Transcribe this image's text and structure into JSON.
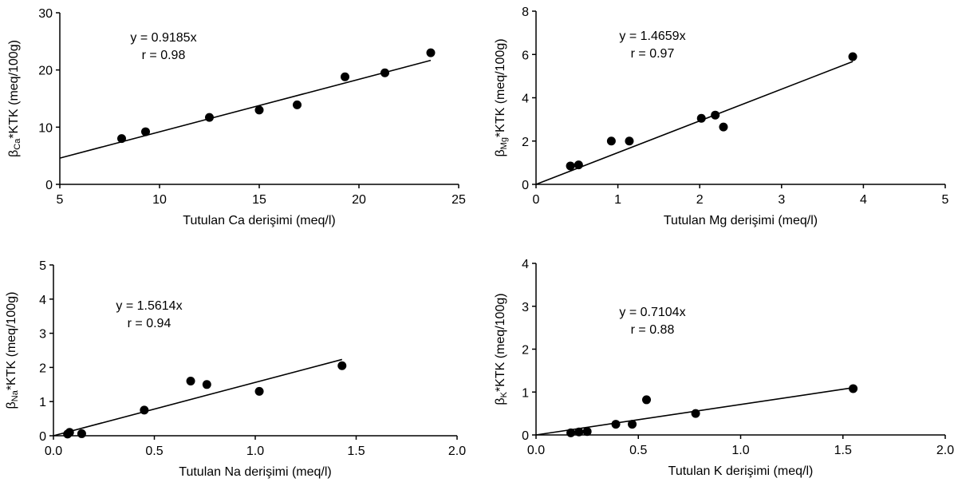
{
  "chart_data": [
    {
      "type": "scatter",
      "xlabel": "Tutulan Ca derişimi (meq/l)",
      "ylabel_prefix": "β",
      "ylabel_sub": "Ca",
      "ylabel_suffix": "*KTK (meq/100g)",
      "xlim": [
        5,
        25
      ],
      "ylim": [
        0,
        30
      ],
      "xticks": [
        5,
        10,
        15,
        20,
        25
      ],
      "xtick_labels": [
        "5",
        "10",
        "15",
        "20",
        "25"
      ],
      "yticks": [
        0,
        10,
        20,
        30
      ],
      "ytick_labels": [
        "0",
        "10",
        "20",
        "30"
      ],
      "points": [
        {
          "x": 8.1,
          "y": 8.0
        },
        {
          "x": 9.3,
          "y": 9.2
        },
        {
          "x": 12.5,
          "y": 11.7
        },
        {
          "x": 15.0,
          "y": 13.0
        },
        {
          "x": 16.9,
          "y": 13.9
        },
        {
          "x": 19.3,
          "y": 18.8
        },
        {
          "x": 21.3,
          "y": 19.5
        },
        {
          "x": 23.6,
          "y": 23.0
        }
      ],
      "trendline": {
        "slope": 0.9185,
        "x_start": 5,
        "x_end": 23.6
      },
      "annotation": [
        "y = 0.9185x",
        "r = 0.98"
      ],
      "grid": false,
      "legend": "none"
    },
    {
      "type": "scatter",
      "xlabel": "Tutulan Mg derişimi (meq/l)",
      "ylabel_prefix": "β",
      "ylabel_sub": "Mg",
      "ylabel_suffix": "*KTK (meq/100g)",
      "xlim": [
        0,
        5
      ],
      "ylim": [
        0,
        8
      ],
      "xticks": [
        0,
        1,
        2,
        3,
        4,
        5
      ],
      "xtick_labels": [
        "0",
        "1",
        "2",
        "3",
        "4",
        "5"
      ],
      "yticks": [
        0,
        2,
        4,
        6,
        8
      ],
      "ytick_labels": [
        "0",
        "2",
        "4",
        "6",
        "8"
      ],
      "points": [
        {
          "x": 0.42,
          "y": 0.85
        },
        {
          "x": 0.52,
          "y": 0.9
        },
        {
          "x": 0.92,
          "y": 2.0
        },
        {
          "x": 1.14,
          "y": 2.0
        },
        {
          "x": 2.02,
          "y": 3.05
        },
        {
          "x": 2.19,
          "y": 3.2
        },
        {
          "x": 2.29,
          "y": 2.65
        },
        {
          "x": 3.87,
          "y": 5.9
        }
      ],
      "trendline": {
        "slope": 1.4659,
        "x_start": 0,
        "x_end": 3.87
      },
      "annotation": [
        "y = 1.4659x",
        "r = 0.97"
      ],
      "grid": false,
      "legend": "none"
    },
    {
      "type": "scatter",
      "xlabel": "Tutulan Na derişimi (meq/l)",
      "ylabel_prefix": "β",
      "ylabel_sub": "Na",
      "ylabel_suffix": "*KTK (meq/100g)",
      "xlim": [
        0,
        2
      ],
      "ylim": [
        0,
        5
      ],
      "xticks": [
        0,
        0.5,
        1,
        1.5,
        2
      ],
      "xtick_labels": [
        "0.0",
        "0.5",
        "1.0",
        "1.5",
        "2.0"
      ],
      "yticks": [
        0,
        1,
        2,
        3,
        4,
        5
      ],
      "ytick_labels": [
        "0",
        "1",
        "2",
        "3",
        "4",
        "5"
      ],
      "points": [
        {
          "x": 0.07,
          "y": 0.05
        },
        {
          "x": 0.08,
          "y": 0.1
        },
        {
          "x": 0.14,
          "y": 0.06
        },
        {
          "x": 0.45,
          "y": 0.75
        },
        {
          "x": 0.68,
          "y": 1.6
        },
        {
          "x": 0.76,
          "y": 1.5
        },
        {
          "x": 1.02,
          "y": 1.3
        },
        {
          "x": 1.43,
          "y": 2.05
        }
      ],
      "trendline": {
        "slope": 1.5614,
        "x_start": 0,
        "x_end": 1.43
      },
      "annotation": [
        "y = 1.5614x",
        "r = 0.94"
      ],
      "grid": false,
      "legend": "none"
    },
    {
      "type": "scatter",
      "xlabel": "Tutulan K derişimi (meq/l)",
      "ylabel_prefix": "β",
      "ylabel_sub": "K",
      "ylabel_suffix": "*KTK (meq/100g)",
      "xlim": [
        0,
        2
      ],
      "ylim": [
        0,
        4
      ],
      "xticks": [
        0,
        0.5,
        1,
        1.5,
        2
      ],
      "xtick_labels": [
        "0.0",
        "0.5",
        "1.0",
        "1.5",
        "2.0"
      ],
      "yticks": [
        0,
        1,
        2,
        3,
        4
      ],
      "ytick_labels": [
        "0",
        "1",
        "2",
        "3",
        "4"
      ],
      "points": [
        {
          "x": 0.17,
          "y": 0.05
        },
        {
          "x": 0.21,
          "y": 0.07
        },
        {
          "x": 0.25,
          "y": 0.08
        },
        {
          "x": 0.39,
          "y": 0.25
        },
        {
          "x": 0.47,
          "y": 0.25
        },
        {
          "x": 0.54,
          "y": 0.82
        },
        {
          "x": 0.78,
          "y": 0.5
        },
        {
          "x": 1.55,
          "y": 1.08
        }
      ],
      "trendline": {
        "slope": 0.7104,
        "x_start": 0,
        "x_end": 1.55
      },
      "annotation": [
        "y = 0.7104x",
        "r = 0.88"
      ],
      "grid": false,
      "legend": "none"
    }
  ]
}
